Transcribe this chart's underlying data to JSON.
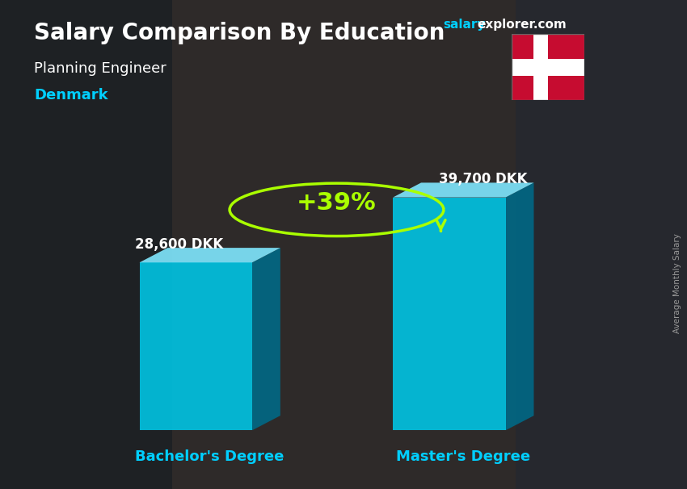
{
  "title": "Salary Comparison By Education",
  "subtitle": "Planning Engineer",
  "country": "Denmark",
  "categories": [
    "Bachelor's Degree",
    "Master's Degree"
  ],
  "values": [
    28600,
    39700
  ],
  "value_labels": [
    "28,600 DKK",
    "39,700 DKK"
  ],
  "pct_change": "+39%",
  "bar_face_color": "#00c8e8",
  "bar_left_color": "#009ab8",
  "bar_right_color": "#006a88",
  "bar_top_color": "#80e8ff",
  "ylabel_text": "Average Monthly Salary",
  "bg_color": "#3a3a3a",
  "title_color": "#ffffff",
  "subtitle_color": "#ffffff",
  "country_color": "#00cfff",
  "value_color": "#ffffff",
  "pct_color": "#aaff00",
  "xlabel_color": "#00cfff",
  "site_salary_color": "#00cfff",
  "site_explorer_color": "#ffffff",
  "arrow_color": "#aaff00",
  "figsize": [
    8.5,
    6.06
  ],
  "dpi": 100
}
